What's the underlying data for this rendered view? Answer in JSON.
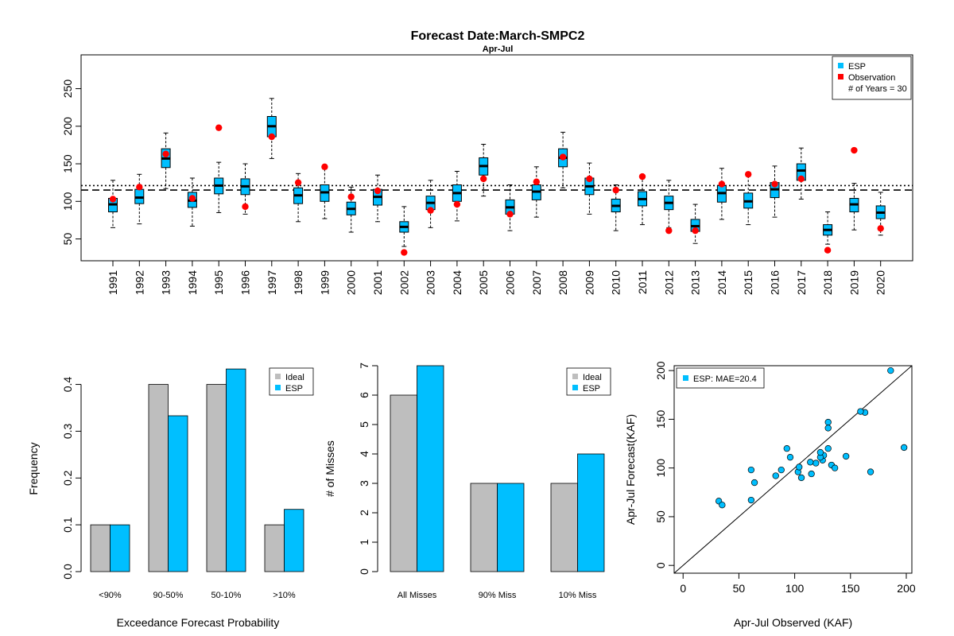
{
  "title": "Forecast Date:March-SMPC2",
  "subtitle": "Apr-Jul",
  "colors": {
    "esp": "#00BFFF",
    "observation": "#FF0000",
    "ideal": "#BEBEBE"
  },
  "chart_data": [
    {
      "type": "box",
      "id": "boxplot",
      "xlabel": "",
      "ylabel": "",
      "ylim": [
        22,
        295
      ],
      "yticks": [
        50,
        100,
        150,
        200,
        250
      ],
      "categories": [
        "1991",
        "1992",
        "1993",
        "1994",
        "1995",
        "1996",
        "1997",
        "1998",
        "1999",
        "2000",
        "2001",
        "2002",
        "2003",
        "2004",
        "2005",
        "2006",
        "2007",
        "2008",
        "2009",
        "2010",
        "2011",
        "2012",
        "2013",
        "2014",
        "2015",
        "2016",
        "2017",
        "2018",
        "2019",
        "2020"
      ],
      "esp": [
        {
          "min": 65,
          "q1": 86,
          "median": 96,
          "q3": 104,
          "max": 128
        },
        {
          "min": 70,
          "q1": 97,
          "median": 105,
          "q3": 116,
          "max": 136
        },
        {
          "min": 117,
          "q1": 145,
          "median": 157,
          "q3": 170,
          "max": 191
        },
        {
          "min": 67,
          "q1": 92,
          "median": 101,
          "q3": 112,
          "max": 131
        },
        {
          "min": 85,
          "q1": 110,
          "median": 121,
          "q3": 131,
          "max": 152
        },
        {
          "min": 83,
          "q1": 109,
          "median": 120,
          "q3": 130,
          "max": 150
        },
        {
          "min": 157,
          "q1": 186,
          "median": 200,
          "q3": 213,
          "max": 237
        },
        {
          "min": 73,
          "q1": 97,
          "median": 108,
          "q3": 118,
          "max": 137
        },
        {
          "min": 77,
          "q1": 100,
          "median": 112,
          "q3": 122,
          "max": 143
        },
        {
          "min": 59,
          "q1": 82,
          "median": 90,
          "q3": 99,
          "max": 119
        },
        {
          "min": 73,
          "q1": 95,
          "median": 106,
          "q3": 116,
          "max": 135
        },
        {
          "min": 40,
          "q1": 59,
          "median": 66,
          "q3": 73,
          "max": 93
        },
        {
          "min": 65,
          "q1": 89,
          "median": 98,
          "q3": 107,
          "max": 128
        },
        {
          "min": 74,
          "q1": 100,
          "median": 111,
          "q3": 122,
          "max": 140
        },
        {
          "min": 107,
          "q1": 135,
          "median": 147,
          "q3": 158,
          "max": 176
        },
        {
          "min": 61,
          "q1": 83,
          "median": 92,
          "q3": 102,
          "max": 122
        },
        {
          "min": 79,
          "q1": 102,
          "median": 113,
          "q3": 122,
          "max": 146
        },
        {
          "min": 118,
          "q1": 146,
          "median": 158,
          "q3": 170,
          "max": 192
        },
        {
          "min": 83,
          "q1": 109,
          "median": 120,
          "q3": 131,
          "max": 151
        },
        {
          "min": 61,
          "q1": 86,
          "median": 94,
          "q3": 103,
          "max": 122
        },
        {
          "min": 69,
          "q1": 94,
          "median": 103,
          "q3": 113,
          "max": 134
        },
        {
          "min": 65,
          "q1": 89,
          "median": 98,
          "q3": 107,
          "max": 128
        },
        {
          "min": 44,
          "q1": 60,
          "median": 67,
          "q3": 76,
          "max": 96
        },
        {
          "min": 76,
          "q1": 99,
          "median": 111,
          "q3": 121,
          "max": 144
        },
        {
          "min": 69,
          "q1": 91,
          "median": 100,
          "q3": 111,
          "max": 134
        },
        {
          "min": 79,
          "q1": 105,
          "median": 116,
          "q3": 125,
          "max": 147
        },
        {
          "min": 103,
          "q1": 128,
          "median": 141,
          "q3": 150,
          "max": 171
        },
        {
          "min": 43,
          "q1": 55,
          "median": 62,
          "q3": 69,
          "max": 86
        },
        {
          "min": 62,
          "q1": 86,
          "median": 96,
          "q3": 104,
          "max": 124
        },
        {
          "min": 55,
          "q1": 77,
          "median": 85,
          "q3": 94,
          "max": 112
        }
      ],
      "observation": [
        103,
        119,
        163,
        104,
        198,
        93,
        186,
        125,
        146,
        106,
        114,
        32,
        88,
        96,
        130,
        83,
        126,
        159,
        130,
        115,
        133,
        61,
        61,
        123,
        136,
        123,
        130,
        35,
        168,
        64
      ],
      "hlines": [
        {
          "style": "dotted",
          "value": 121
        },
        {
          "style": "dashed",
          "value": 115
        }
      ],
      "legend": {
        "position": "top-right",
        "items": [
          {
            "label": "ESP",
            "color": "#00BFFF"
          },
          {
            "label": "Observation",
            "color": "#FF0000"
          }
        ],
        "note": "# of Years = 30"
      }
    },
    {
      "type": "bar",
      "id": "freq",
      "xlabel": "Exceedance Forecast Probability",
      "ylabel": "Frequency",
      "ylim": [
        0,
        0.44
      ],
      "yticks": [
        0.0,
        0.1,
        0.2,
        0.3,
        0.4
      ],
      "ytick_labels": [
        "0.0",
        "0.1",
        "0.2",
        "0.3",
        "0.4"
      ],
      "categories": [
        "<90%",
        "90-50%",
        "50-10%",
        ">10%"
      ],
      "series": [
        {
          "name": "Ideal",
          "color": "#BEBEBE",
          "values": [
            0.1,
            0.4,
            0.4,
            0.1
          ]
        },
        {
          "name": "ESP",
          "color": "#00BFFF",
          "values": [
            0.1,
            0.333,
            0.433,
            0.133
          ]
        }
      ],
      "legend": "top-right"
    },
    {
      "type": "bar",
      "id": "misses",
      "xlabel": "",
      "ylabel": "# of Misses",
      "ylim": [
        0,
        7
      ],
      "yticks": [
        0,
        1,
        2,
        3,
        4,
        5,
        6,
        7
      ],
      "ytick_labels": [
        "0",
        "1",
        "2",
        "3",
        "4",
        "5",
        "6",
        "7"
      ],
      "categories": [
        "All Misses",
        "90% Miss",
        "10% Miss"
      ],
      "series": [
        {
          "name": "Ideal",
          "color": "#BEBEBE",
          "values": [
            6,
            3,
            3
          ]
        },
        {
          "name": "ESP",
          "color": "#00BFFF",
          "values": [
            7,
            3,
            4
          ]
        }
      ],
      "legend": "top-right"
    },
    {
      "type": "scatter",
      "id": "scatter",
      "xlabel": "Apr-Jul Observed (KAF)",
      "ylabel": "Apr-Jul Forecast(KAF)",
      "xlim": [
        -8,
        205
      ],
      "ylim": [
        -8,
        205
      ],
      "xticks": [
        0,
        50,
        100,
        150,
        200
      ],
      "yticks": [
        0,
        50,
        100,
        150,
        200
      ],
      "legend": {
        "position": "top-left",
        "label": "ESP: MAE=20.4",
        "color": "#00BFFF"
      },
      "identity_line": true,
      "points": [
        [
          103,
          96
        ],
        [
          119,
          105
        ],
        [
          163,
          157
        ],
        [
          104,
          101
        ],
        [
          198,
          121
        ],
        [
          93,
          120
        ],
        [
          186,
          200
        ],
        [
          125,
          108
        ],
        [
          146,
          112
        ],
        [
          106,
          90
        ],
        [
          114,
          106
        ],
        [
          32,
          66
        ],
        [
          88,
          98
        ],
        [
          96,
          111
        ],
        [
          130,
          147
        ],
        [
          83,
          92
        ],
        [
          126,
          113
        ],
        [
          159,
          158
        ],
        [
          130,
          120
        ],
        [
          115,
          94
        ],
        [
          133,
          103
        ],
        [
          61,
          98
        ],
        [
          61,
          67
        ],
        [
          123,
          111
        ],
        [
          136,
          100
        ],
        [
          123,
          116
        ],
        [
          130,
          141
        ],
        [
          35,
          62
        ],
        [
          168,
          96
        ],
        [
          64,
          85
        ]
      ]
    }
  ]
}
